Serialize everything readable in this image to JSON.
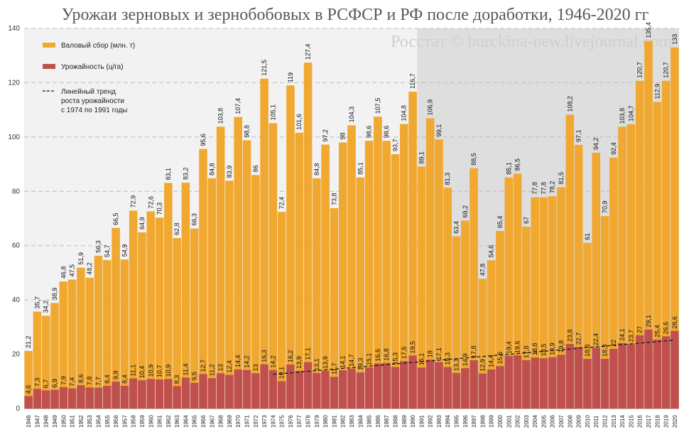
{
  "title": "Урожаи зерновых и зернобобовых в РСФСР и РФ после доработки, 1946-2020 гг",
  "watermark": "Росстат © burckina-new.livejournal.com",
  "colors": {
    "gross": "#F0A830",
    "yield": "#C0504D",
    "trend": "#1a1a1a",
    "shade": "#DEDEDE"
  },
  "legend": {
    "gross": "Валовый сбор (млн. т)",
    "yield": "Урожайность (ц/га)",
    "trend_lines": [
      "Линейный тренд",
      "роста урожайности",
      "с 1974 по 1991 годы"
    ]
  },
  "chart_data": {
    "type": "bar",
    "title": "Урожаи зерновых и зернобобовых в РСФСР и РФ после доработки, 1946-2020 гг",
    "xlabel": "",
    "ylabel": "",
    "ylim": [
      0,
      140
    ],
    "yticks": [
      0,
      20,
      40,
      60,
      80,
      100,
      120,
      140
    ],
    "grid": true,
    "legend_position": "top-left",
    "shaded_from_category": "1991",
    "categories": [
      "1946",
      "1947",
      "1948",
      "1949",
      "1950",
      "1951",
      "1952",
      "1953",
      "1954",
      "1955",
      "1956",
      "1957",
      "1958",
      "1959",
      "1960",
      "1961",
      "1962",
      "1963",
      "1964",
      "1965",
      "1966",
      "1967",
      "1968",
      "1969",
      "1970",
      "1971",
      "1972",
      "1973",
      "1974",
      "1975",
      "1976",
      "1977",
      "1978",
      "1979",
      "1980",
      "1981",
      "1982",
      "1983",
      "1984",
      "1985",
      "1986",
      "1987",
      "1988",
      "1989",
      "1990",
      "1991",
      "1992",
      "1993",
      "1994",
      "1995",
      "1996",
      "1997",
      "1998",
      "1999",
      "2000",
      "2001",
      "2002",
      "2003",
      "2004",
      "2005",
      "2006",
      "2007",
      "2008",
      "2009",
      "2010",
      "2011",
      "2012",
      "2013",
      "2014",
      "2015",
      "2016",
      "2017",
      "2018",
      "2019",
      "2020"
    ],
    "series": [
      {
        "name": "Валовый сбор (млн. т)",
        "values": [
          21.2,
          35.7,
          34.2,
          38.9,
          46.8,
          47.5,
          51.9,
          48.2,
          56.3,
          54.7,
          66.5,
          54.9,
          72.9,
          64.9,
          72.6,
          70.3,
          83.1,
          62.8,
          83.2,
          66.3,
          95.6,
          84.8,
          103.8,
          83.9,
          107.4,
          98.8,
          86,
          121.5,
          105.1,
          72.4,
          119,
          101.6,
          127.4,
          84.8,
          97.2,
          73.8,
          98,
          104.3,
          85.1,
          98.6,
          107.5,
          98.6,
          93.7,
          104.8,
          116.7,
          89.1,
          106.9,
          99.1,
          81.3,
          63.4,
          69.2,
          88.5,
          47.8,
          54.6,
          65.4,
          85.1,
          86.5,
          67,
          77.8,
          77.8,
          78.2,
          81.5,
          108.2,
          97.1,
          61,
          94.2,
          70.9,
          92.4,
          103.8,
          104.7,
          120.7,
          135.4,
          112.9,
          120.7,
          133
        ]
      },
      {
        "name": "Урожайность (ц/га)",
        "values": [
          4.6,
          7.3,
          6.7,
          6.9,
          7.9,
          7.4,
          8.6,
          7.8,
          7.7,
          8.4,
          9.9,
          8.4,
          11.1,
          10.4,
          10.9,
          10.7,
          10.9,
          8.3,
          11.4,
          9.5,
          12.7,
          11.2,
          13,
          12.4,
          14.4,
          14.2,
          13,
          16.3,
          14.2,
          10.1,
          16.2,
          13.9,
          17.1,
          13.1,
          13.9,
          11.7,
          14.1,
          14.7,
          13.3,
          15.1,
          16.6,
          16.8,
          15.3,
          17.5,
          19.5,
          15.1,
          18,
          17.1,
          15.3,
          13.1,
          14.9,
          17.8,
          12.9,
          14.4,
          15.6,
          19.4,
          19.6,
          17.8,
          18.8,
          18.5,
          18.9,
          19.8,
          23.8,
          22.7,
          18.3,
          22.4,
          18.3,
          22,
          24.1,
          23.7,
          27,
          29.1,
          25.4,
          26.6,
          28.6
        ]
      }
    ],
    "trend_line": {
      "from": "1974",
      "to": "2020",
      "y_from": 12.6,
      "y_to": 25.2
    }
  }
}
